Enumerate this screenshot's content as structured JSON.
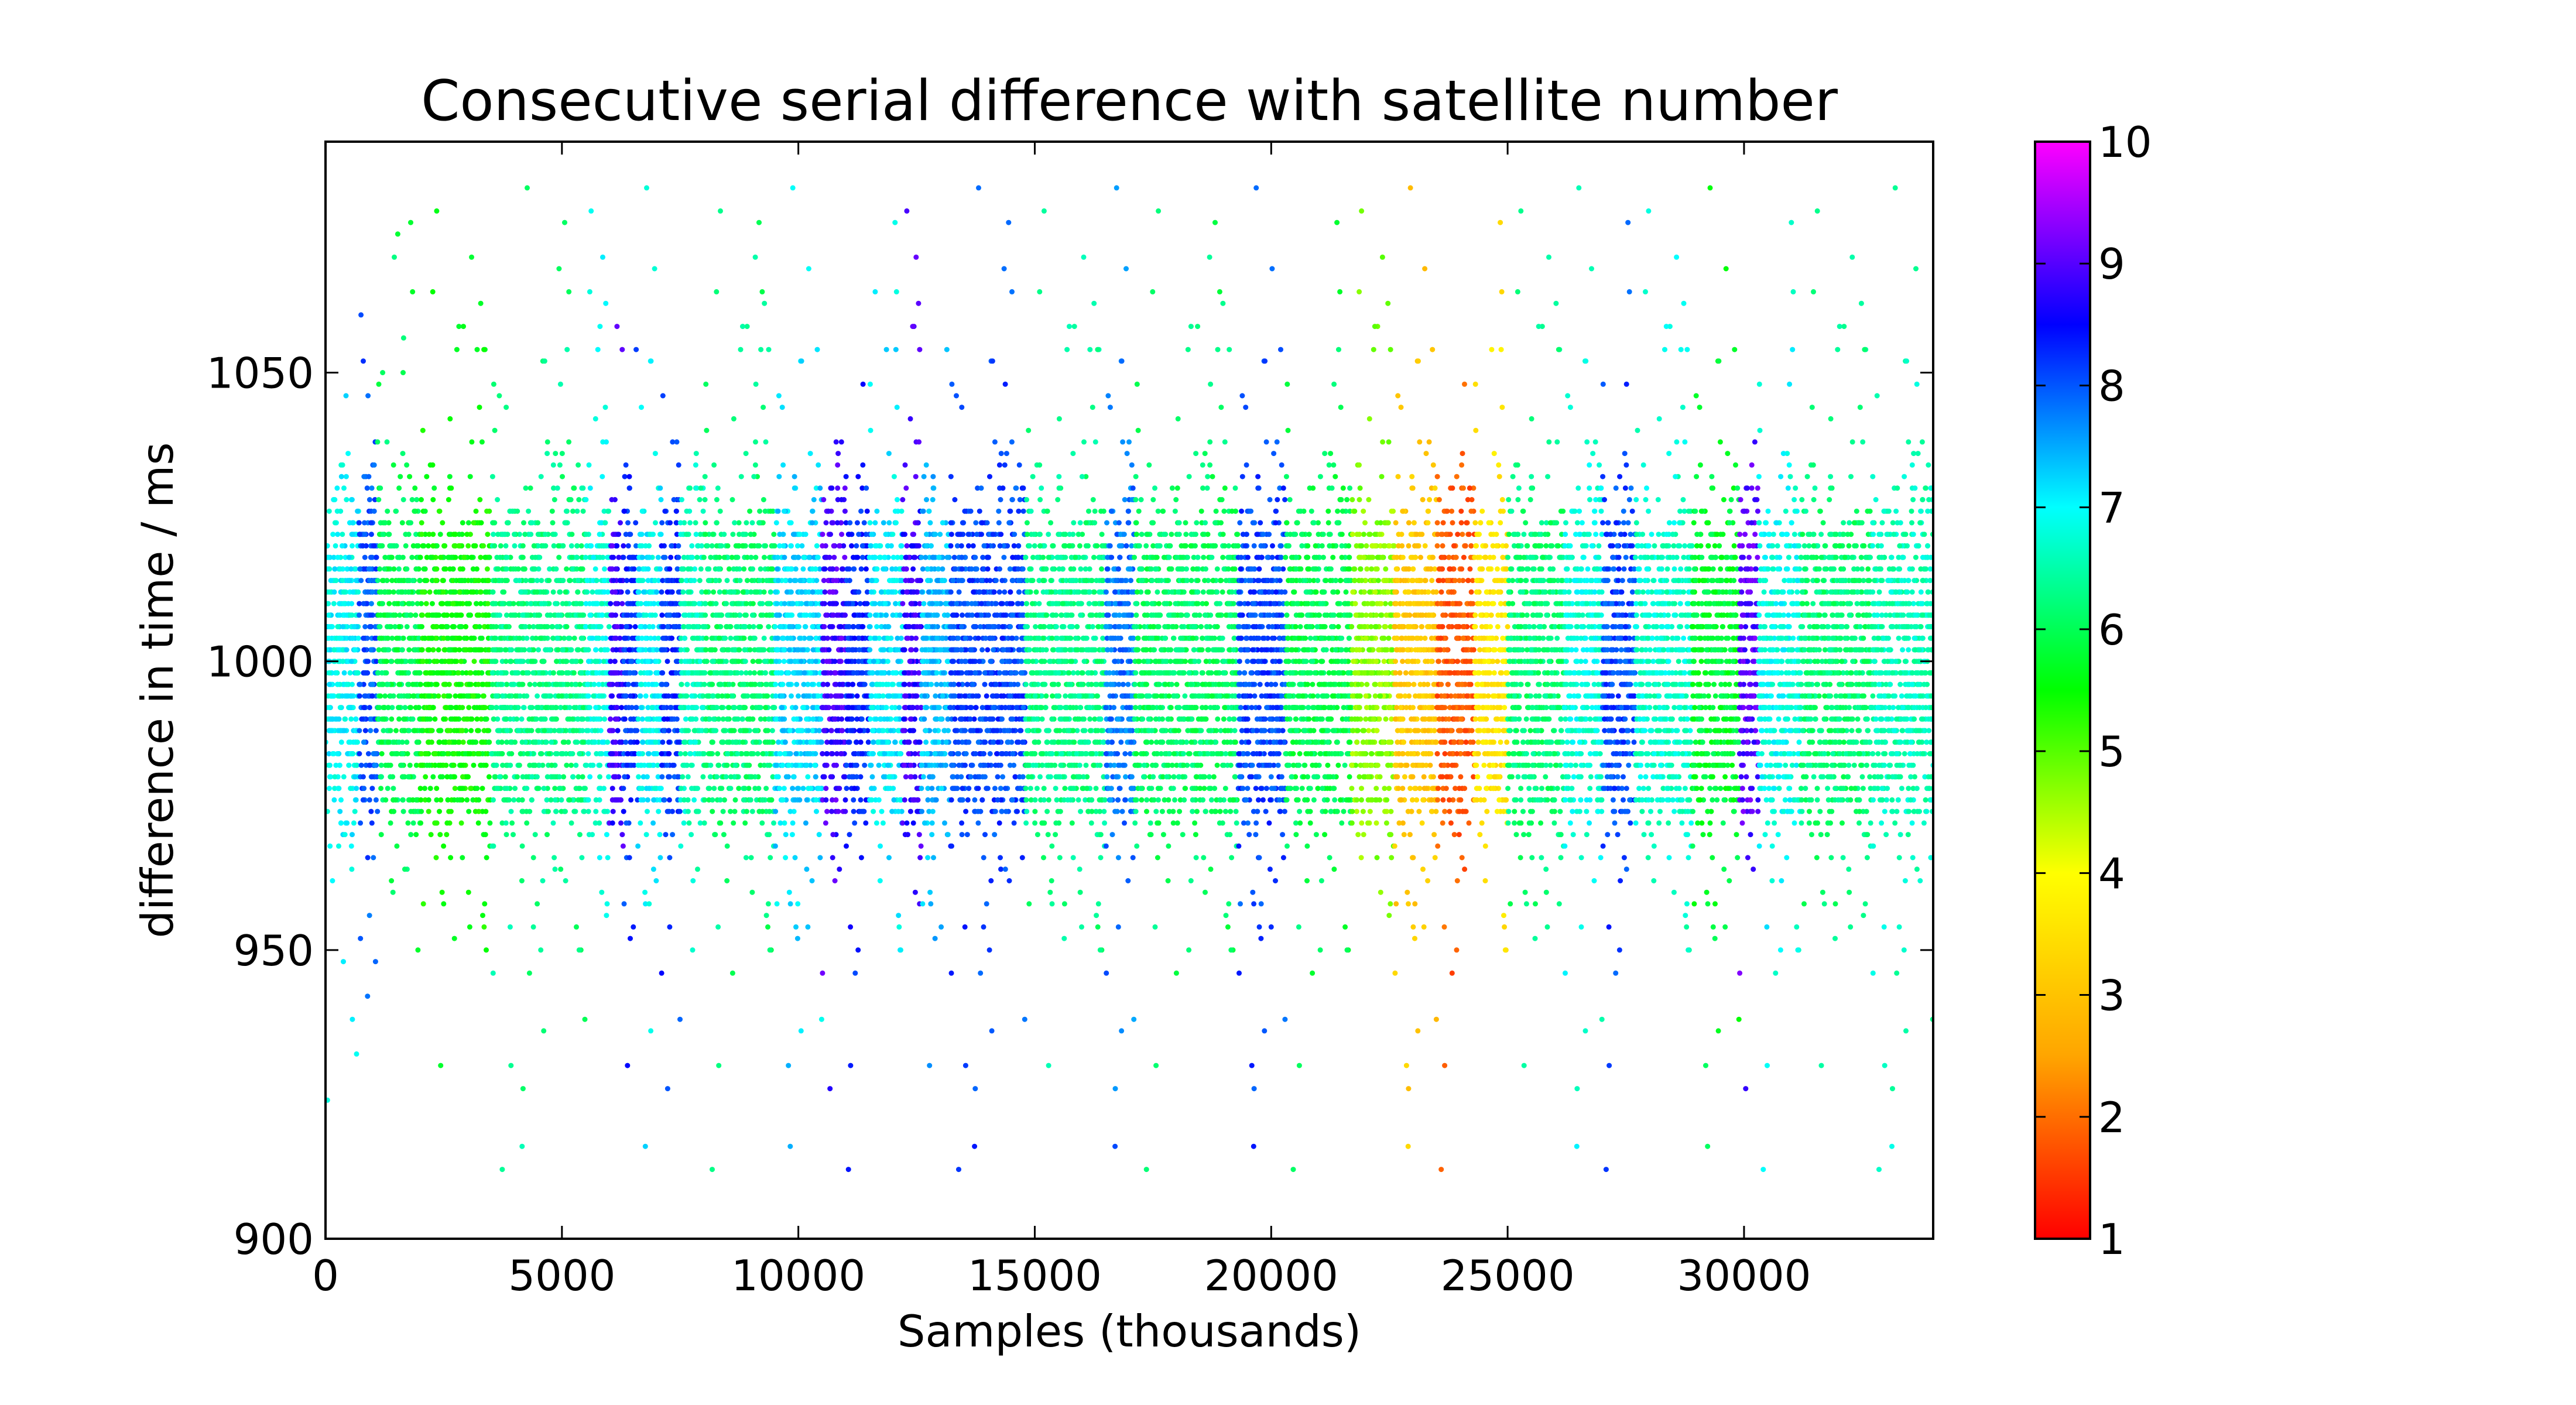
{
  "chart_data": {
    "type": "scatter",
    "title": "Consecutive serial difference with satellite number",
    "xlabel": "Samples (thousands)",
    "ylabel": "difference in time / ms",
    "xlim": [
      0,
      34000
    ],
    "ylim": [
      900,
      1090
    ],
    "x_ticks": [
      0,
      5000,
      10000,
      15000,
      20000,
      25000,
      30000
    ],
    "y_ticks": [
      900,
      950,
      1000,
      1050
    ],
    "grid": false,
    "colorbar": {
      "label": "",
      "range": [
        1,
        10
      ],
      "ticks": [
        1,
        2,
        3,
        4,
        5,
        6,
        7,
        8,
        9,
        10
      ],
      "colormap": "gist_rainbow",
      "stops": [
        "#ff0000",
        "#ffa500",
        "#ffff00",
        "#00ff00",
        "#00ffff",
        "#0000ff",
        "#ff00ff"
      ]
    },
    "color_variable": "satellite number",
    "segments": [
      {
        "x0": 0,
        "x1": 700,
        "sat": 7
      },
      {
        "x0": 700,
        "x1": 1100,
        "sat": 8
      },
      {
        "x0": 1100,
        "x1": 2000,
        "sat": 6
      },
      {
        "x0": 2000,
        "x1": 3500,
        "sat": 5.5
      },
      {
        "x0": 3500,
        "x1": 5500,
        "sat": 6.3
      },
      {
        "x0": 5500,
        "x1": 6000,
        "sat": 6.8
      },
      {
        "x0": 6000,
        "x1": 6300,
        "sat": 8.8
      },
      {
        "x0": 6300,
        "x1": 6600,
        "sat": 8.2
      },
      {
        "x0": 6600,
        "x1": 7100,
        "sat": 7
      },
      {
        "x0": 7100,
        "x1": 7500,
        "sat": 8.2
      },
      {
        "x0": 7500,
        "x1": 8000,
        "sat": 6.6
      },
      {
        "x0": 8000,
        "x1": 9500,
        "sat": 6.2
      },
      {
        "x0": 9500,
        "x1": 10500,
        "sat": 7.2
      },
      {
        "x0": 10500,
        "x1": 11000,
        "sat": 8.9
      },
      {
        "x0": 11000,
        "x1": 11500,
        "sat": 8.3
      },
      {
        "x0": 11500,
        "x1": 12200,
        "sat": 7.1
      },
      {
        "x0": 12200,
        "x1": 12600,
        "sat": 8.8
      },
      {
        "x0": 12600,
        "x1": 13200,
        "sat": 7.4
      },
      {
        "x0": 13200,
        "x1": 14800,
        "sat": 8.1
      },
      {
        "x0": 14800,
        "x1": 16500,
        "sat": 6.3
      },
      {
        "x0": 16500,
        "x1": 17100,
        "sat": 7.8
      },
      {
        "x0": 17100,
        "x1": 19300,
        "sat": 6.1
      },
      {
        "x0": 19300,
        "x1": 20300,
        "sat": 8.1
      },
      {
        "x0": 20300,
        "x1": 21700,
        "sat": 6
      },
      {
        "x0": 21700,
        "x1": 22600,
        "sat": 4.7
      },
      {
        "x0": 22600,
        "x1": 23500,
        "sat": 3.1
      },
      {
        "x0": 23500,
        "x1": 24300,
        "sat": 1.8
      },
      {
        "x0": 24300,
        "x1": 25000,
        "sat": 3.6
      },
      {
        "x0": 25000,
        "x1": 26200,
        "sat": 6.2
      },
      {
        "x0": 26200,
        "x1": 27000,
        "sat": 6.8
      },
      {
        "x0": 27000,
        "x1": 27700,
        "sat": 8.1
      },
      {
        "x0": 27700,
        "x1": 28900,
        "sat": 6.7
      },
      {
        "x0": 28900,
        "x1": 29900,
        "sat": 5.8
      },
      {
        "x0": 29900,
        "x1": 30300,
        "sat": 9
      },
      {
        "x0": 30300,
        "x1": 31200,
        "sat": 6.9
      },
      {
        "x0": 31200,
        "x1": 32700,
        "sat": 6.2
      },
      {
        "x0": 32700,
        "x1": 34000,
        "sat": 6.6
      }
    ],
    "y_center": 1000,
    "y_spread": 22
  }
}
